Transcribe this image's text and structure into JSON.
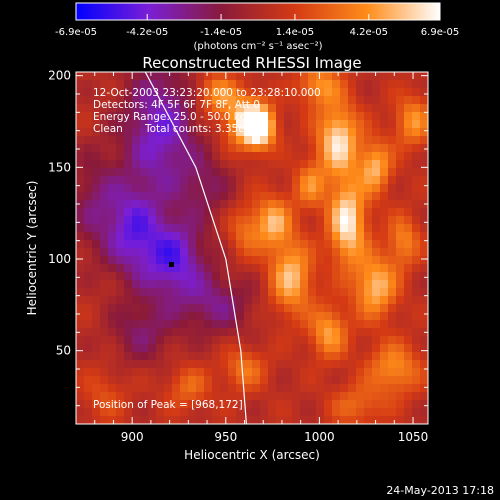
{
  "colorbar": {
    "tick_labels": [
      "-6.9e-05",
      "-4.2e-05",
      "-1.4e-05",
      "1.4e-05",
      "4.2e-05",
      "6.9e-05"
    ],
    "tick_values": [
      -6.9e-05,
      -4.2e-05,
      -1.4e-05,
      1.4e-05,
      4.2e-05,
      6.9e-05
    ],
    "units": "(photons cm⁻² s⁻¹ asec⁻²)",
    "range": [
      -6.9e-05,
      6.9e-05
    ],
    "colors": [
      "#0000ff",
      "#7a1fd6",
      "#8a1a3a",
      "#d43a14",
      "#ff8c1a",
      "#ffffff"
    ]
  },
  "chart_data": {
    "type": "heatmap",
    "title": "Reconstructed RHESSI Image",
    "xlabel": "Heliocentric X (arcsec)",
    "ylabel": "Heliocentric Y (arcsec)",
    "xlim": [
      870,
      1058
    ],
    "ylim": [
      10,
      202
    ],
    "x_ticks": [
      900,
      950,
      1000,
      1050
    ],
    "y_ticks": [
      50,
      100,
      150,
      200
    ],
    "annotations": {
      "time_range": "12-Oct-2003 23:23:20.000 to 23:28:10.000",
      "detectors": "Detectors: 4F 5F 6F 7F 8F, Att 0",
      "energy_range": "Energy Range: 25.0 - 50.0 keV",
      "method": "Clean",
      "total_counts": "Total counts: 3.35e+05",
      "peak": "Position of Peak = [968,172]"
    },
    "peak_position": [
      968,
      172
    ],
    "marked_point": [
      921,
      97
    ],
    "limb_points": [
      [
        907,
        202
      ],
      [
        934,
        150
      ],
      [
        950,
        100
      ],
      [
        958,
        50
      ],
      [
        961,
        10
      ]
    ]
  },
  "footer": {
    "date": "24-May-2013 17:18"
  }
}
